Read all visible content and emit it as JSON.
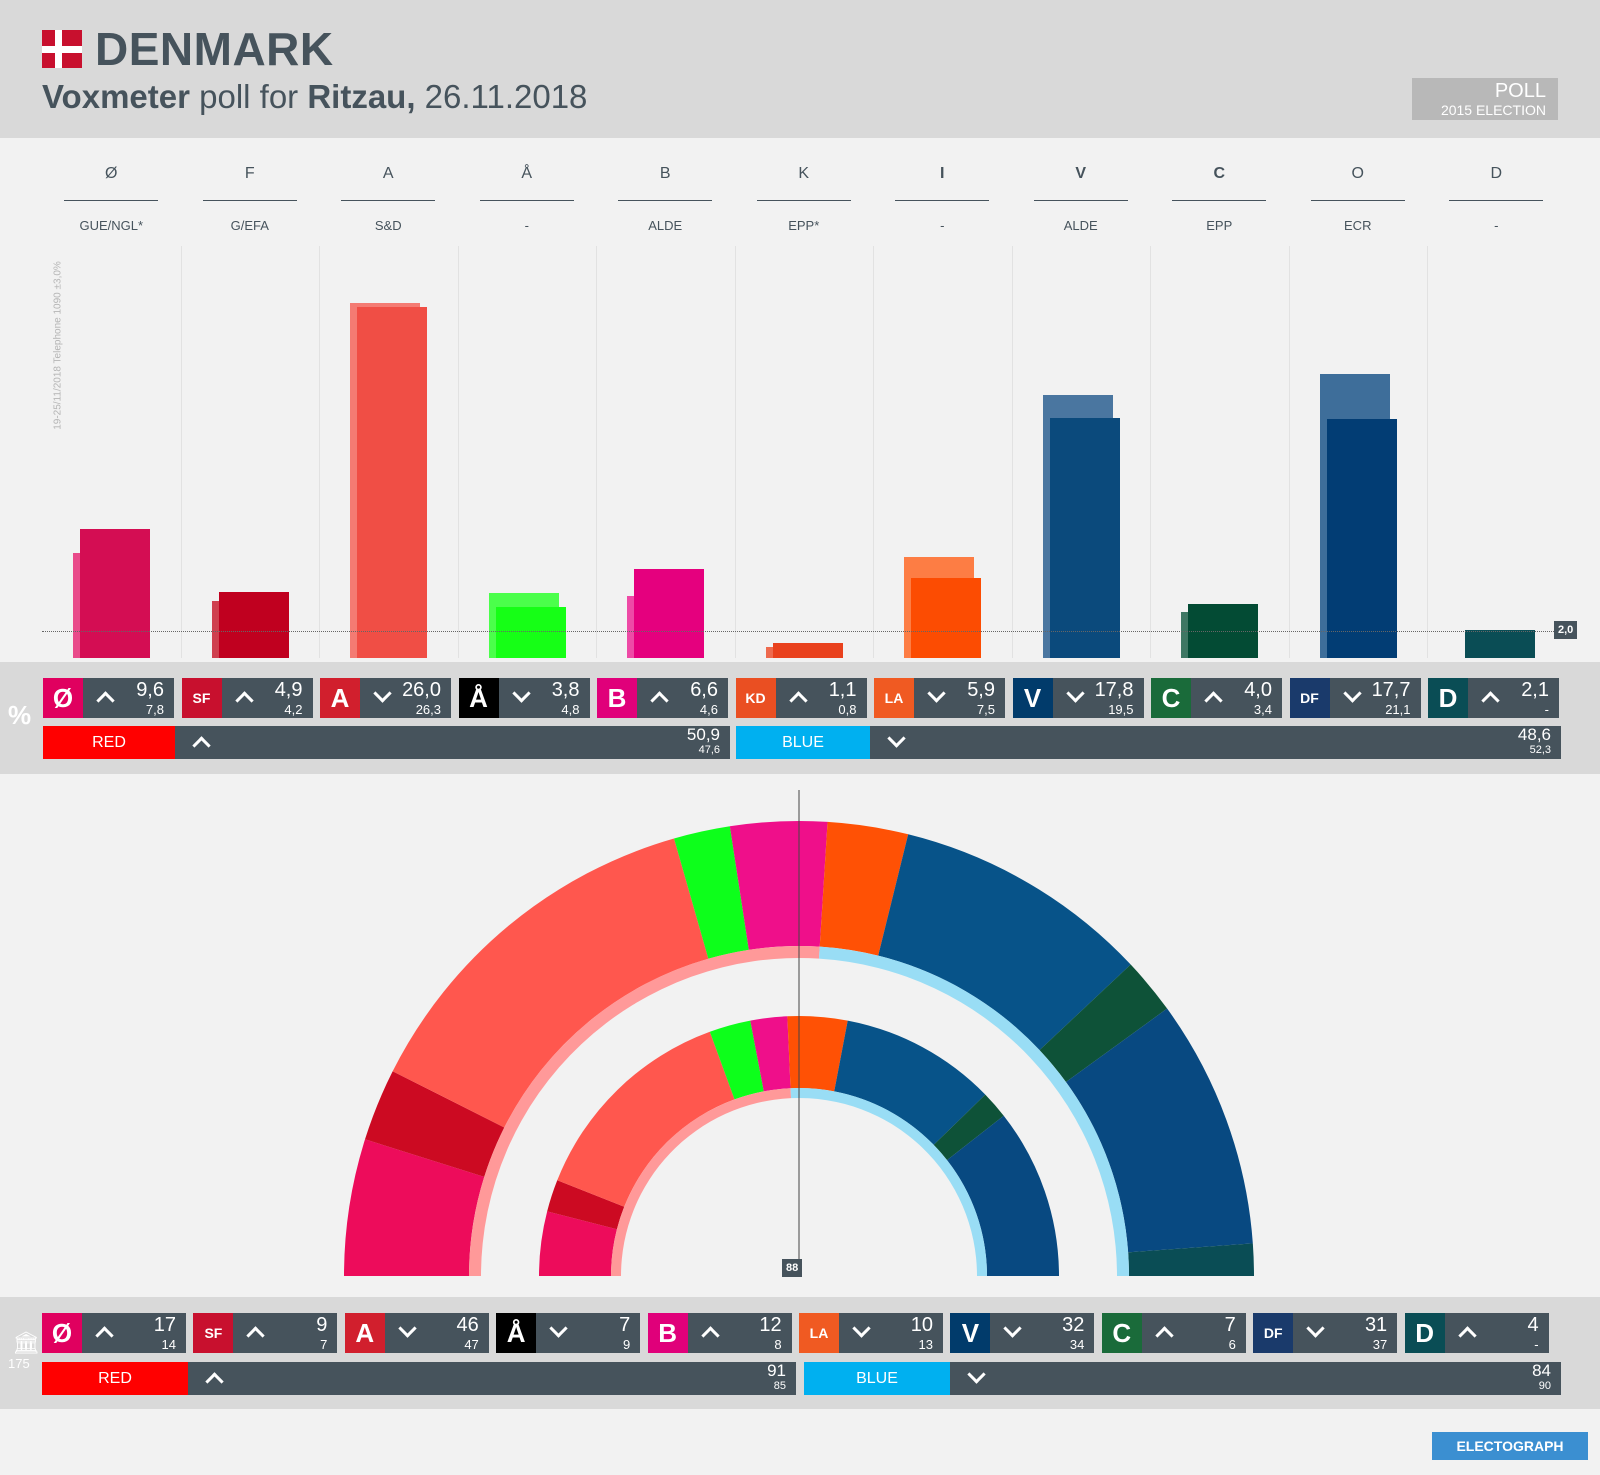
{
  "header": {
    "country": "DENMARK",
    "pollster": "Voxmeter",
    "mid_text": " poll for ",
    "client": "Ritzau,",
    "date": " 26.11.2018",
    "badge_top": "POLL",
    "badge_bottom": "2015 ELECTION",
    "side_note": "19-25/11/2018  Telephone  1090  ±3,0%"
  },
  "colors": {
    "red_block": "#ff0000",
    "blue_block": "#00b0f0",
    "panel": "#46535c"
  },
  "chart_data": {
    "type": "bar",
    "title": "Voxmeter poll for Ritzau, 26.11.2018",
    "ylim": [
      0,
      27
    ],
    "threshold": 2.0,
    "threshold_label": "2,0",
    "categories": [
      "Ø",
      "F",
      "A",
      "Å",
      "B",
      "K",
      "I",
      "V",
      "C",
      "O",
      "D"
    ],
    "groups": [
      "GUE/NGL*",
      "G/EFA",
      "S&D",
      "-",
      "ALDE",
      "EPP*",
      "-",
      "ALDE",
      "EPP",
      "ECR",
      "-"
    ],
    "bold_letters": [
      false,
      false,
      false,
      false,
      false,
      false,
      true,
      true,
      true,
      false,
      false
    ],
    "series": [
      {
        "name": "Poll",
        "values": [
          9.6,
          4.9,
          26.0,
          3.8,
          6.6,
          1.1,
          5.9,
          17.8,
          4.0,
          17.7,
          2.1
        ]
      },
      {
        "name": "2015 Election",
        "values": [
          7.8,
          4.2,
          26.3,
          4.8,
          4.6,
          0.8,
          7.5,
          19.5,
          3.4,
          21.1,
          null
        ]
      }
    ],
    "bar_colors": [
      "#d40d53",
      "#c0001f",
      "#f04e45",
      "#16ff16",
      "#e5007e",
      "#e9411d",
      "#fc4c02",
      "#0b4a7c",
      "#034b34",
      "#023d74",
      "#0a4d55"
    ],
    "prev_colors": [
      "#e94a8a",
      "#cf404f",
      "#f47b73",
      "#4bff4b",
      "#ee4aa6",
      "#ee6a4e",
      "#fd7d44",
      "#4a76a0",
      "#3e7763",
      "#3e6e9a",
      "#0a4d55"
    ]
  },
  "percent_row": {
    "symbol": "%",
    "items": [
      {
        "logo": "Ø",
        "logo_color": "#e0005f",
        "dir": "up",
        "value": "9,6",
        "prev": "7,8"
      },
      {
        "logo": "SF",
        "logo_color": "#c8102e",
        "dir": "up",
        "value": "4,9",
        "prev": "4,2"
      },
      {
        "logo": "A",
        "logo_color": "#d11f2d",
        "dir": "down",
        "value": "26,0",
        "prev": "26,3"
      },
      {
        "logo": "Å",
        "logo_color": "#000000",
        "dir": "down",
        "value": "3,8",
        "prev": "4,8"
      },
      {
        "logo": "B",
        "logo_color": "#e0007a",
        "dir": "up",
        "value": "6,6",
        "prev": "4,6"
      },
      {
        "logo": "KD",
        "logo_color": "#ea4f22",
        "dir": "up",
        "value": "1,1",
        "prev": "0,8"
      },
      {
        "logo": "LA",
        "logo_color": "#f05a22",
        "dir": "down",
        "value": "5,9",
        "prev": "7,5"
      },
      {
        "logo": "V",
        "logo_color": "#013b6b",
        "dir": "down",
        "value": "17,8",
        "prev": "19,5"
      },
      {
        "logo": "C",
        "logo_color": "#1a6b3a",
        "dir": "up",
        "value": "4,0",
        "prev": "3,4"
      },
      {
        "logo": "DF",
        "logo_color": "#1a3a6b",
        "dir": "down",
        "value": "17,7",
        "prev": "21,1"
      },
      {
        "logo": "D",
        "logo_color": "#0a4d55",
        "dir": "up",
        "value": "2,1",
        "prev": "-"
      }
    ],
    "red": {
      "label": "RED",
      "dir": "up",
      "value": "50,9",
      "prev": "47,6"
    },
    "blue": {
      "label": "BLUE",
      "dir": "down",
      "value": "48,6",
      "prev": "52,3"
    }
  },
  "seats_row": {
    "total": "175",
    "items": [
      {
        "logo": "Ø",
        "logo_color": "#e0005f",
        "dir": "up",
        "value": "17",
        "prev": "14"
      },
      {
        "logo": "SF",
        "logo_color": "#c8102e",
        "dir": "up",
        "value": "9",
        "prev": "7"
      },
      {
        "logo": "A",
        "logo_color": "#d11f2d",
        "dir": "down",
        "value": "46",
        "prev": "47"
      },
      {
        "logo": "Å",
        "logo_color": "#000000",
        "dir": "down",
        "value": "7",
        "prev": "9"
      },
      {
        "logo": "B",
        "logo_color": "#e0007a",
        "dir": "up",
        "value": "12",
        "prev": "8"
      },
      {
        "logo": "LA",
        "logo_color": "#f05a22",
        "dir": "down",
        "value": "10",
        "prev": "13"
      },
      {
        "logo": "V",
        "logo_color": "#013b6b",
        "dir": "down",
        "value": "32",
        "prev": "34"
      },
      {
        "logo": "C",
        "logo_color": "#1a6b3a",
        "dir": "up",
        "value": "7",
        "prev": "6"
      },
      {
        "logo": "DF",
        "logo_color": "#1a3a6b",
        "dir": "down",
        "value": "31",
        "prev": "37"
      },
      {
        "logo": "D",
        "logo_color": "#0a4d55",
        "dir": "up",
        "value": "4",
        "prev": "-"
      }
    ],
    "red": {
      "label": "RED",
      "dir": "up",
      "value": "91",
      "prev": "85"
    },
    "blue": {
      "label": "BLUE",
      "dir": "down",
      "value": "84",
      "prev": "90"
    },
    "majority_label": "88"
  },
  "parliament": {
    "outer_seats": [
      17,
      9,
      46,
      7,
      12,
      10,
      32,
      7,
      31,
      4
    ],
    "inner_seats": [
      14,
      7,
      47,
      9,
      8,
      13,
      34,
      6,
      37
    ],
    "outer_colors": [
      "#ed0c5b",
      "#cc0a22",
      "#ff574e",
      "#0dff1b",
      "#ef0f8a",
      "#ff5105",
      "#075389",
      "#0e5238",
      "#084981",
      "#0a4d55"
    ],
    "inner_colors": [
      "#ed0c5b",
      "#cc0a22",
      "#ff574e",
      "#0dff1b",
      "#ef0f8a",
      "#ff5105",
      "#075389",
      "#0e5238",
      "#084981"
    ]
  },
  "footer": {
    "brand": "ELECTOGRAPH"
  }
}
